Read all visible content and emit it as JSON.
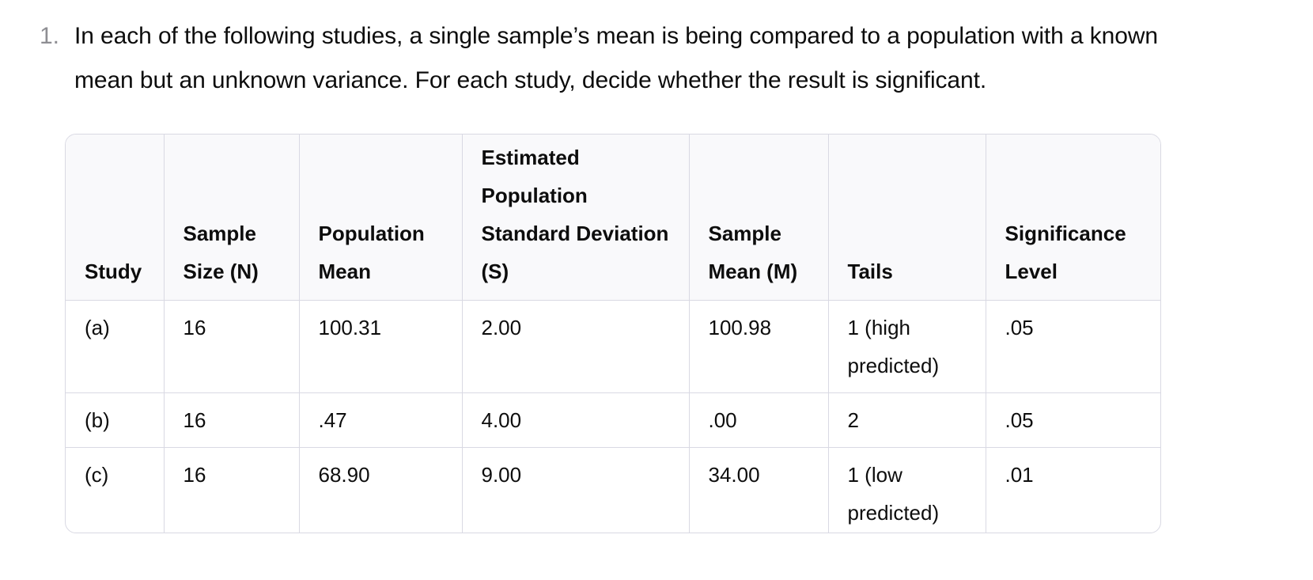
{
  "question": {
    "number": "1.",
    "text": "In each of the following studies, a single sample’s mean is being compared to a population with a known mean but an unknown variance. For each study, decide whether the result is significant."
  },
  "table": {
    "headers": [
      "Study",
      "Sample Size (N)",
      "Population Mean",
      "Estimated Population Standard Deviation (S)",
      "Sample Mean (M)",
      "Tails",
      "Significance Level"
    ],
    "rows": [
      [
        "(a)",
        "16",
        "100.31",
        "2.00",
        "100.98",
        "1 (high predicted)",
        ".05"
      ],
      [
        "(b)",
        "16",
        ".47",
        "4.00",
        ".00",
        "2",
        ".05"
      ],
      [
        "(c)",
        "16",
        "68.90",
        "9.00",
        "34.00",
        "1 (low predicted)",
        ".01"
      ]
    ]
  }
}
